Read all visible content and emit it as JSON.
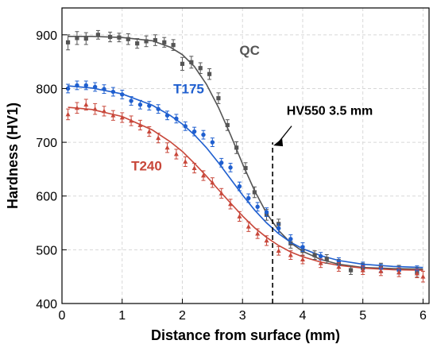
{
  "chart_data": {
    "type": "scatter",
    "xlabel": "Distance from surface (mm)",
    "ylabel": "Hardness (HV1)",
    "xlim": [
      0,
      6.1
    ],
    "ylim": [
      400,
      950
    ],
    "xticks": [
      "0",
      "1",
      "2",
      "3",
      "4",
      "5",
      "6"
    ],
    "yticks": [
      "400",
      "500",
      "600",
      "700",
      "800",
      "900"
    ],
    "grid": true,
    "series": [
      {
        "name": "QC",
        "color": "#555555",
        "marker": "square",
        "x": [
          0.1,
          0.25,
          0.4,
          0.6,
          0.8,
          0.95,
          1.1,
          1.25,
          1.4,
          1.55,
          1.7,
          1.85,
          2.0,
          2.15,
          2.3,
          2.45,
          2.6,
          2.75,
          2.9,
          3.05,
          3.2,
          3.4,
          3.6,
          3.8,
          4.0,
          4.2,
          4.4,
          4.6,
          4.8,
          5.0,
          5.3,
          5.6,
          5.9
        ],
        "y": [
          886,
          894,
          893,
          900,
          896,
          895,
          892,
          884,
          888,
          890,
          886,
          881,
          846,
          849,
          838,
          827,
          782,
          732,
          690,
          652,
          607,
          565,
          548,
          512,
          498,
          490,
          483,
          474,
          462,
          467,
          467,
          463,
          458
        ],
        "error": [
          14,
          12,
          11,
          8,
          9,
          8,
          10,
          9,
          10,
          10,
          9,
          10,
          12,
          11,
          10,
          10,
          10,
          10,
          11,
          10,
          10,
          10,
          9,
          9,
          9,
          8,
          8,
          8,
          8,
          8,
          8,
          8,
          9
        ],
        "fit": {
          "x": [
            0.1,
            0.5,
            1.0,
            1.5,
            1.8,
            2.0,
            2.2,
            2.4,
            2.6,
            2.8,
            3.0,
            3.2,
            3.4,
            3.6,
            3.8,
            4.0,
            4.3,
            4.6,
            5.0,
            5.5,
            6.0
          ],
          "y": [
            897,
            897,
            895,
            889,
            877,
            863,
            841,
            808,
            765,
            714,
            660,
            610,
            568,
            536,
            513,
            497,
            482,
            473,
            467,
            465,
            464
          ]
        }
      },
      {
        "name": "T175",
        "color": "#1f5fcf",
        "marker": "circle",
        "x": [
          0.1,
          0.25,
          0.4,
          0.55,
          0.7,
          0.85,
          1.0,
          1.15,
          1.3,
          1.45,
          1.6,
          1.75,
          1.9,
          2.05,
          2.2,
          2.35,
          2.5,
          2.65,
          2.8,
          2.95,
          3.1,
          3.25,
          3.4,
          3.6,
          3.8,
          4.0,
          4.3,
          4.6,
          5.0,
          5.3,
          5.6,
          5.9
        ],
        "y": [
          800,
          806,
          806,
          803,
          799,
          794,
          789,
          777,
          770,
          768,
          762,
          750,
          744,
          730,
          720,
          714,
          700,
          662,
          653,
          618,
          596,
          580,
          570,
          540,
          520,
          505,
          488,
          478,
          470,
          466,
          462,
          463
        ],
        "error": [
          8,
          8,
          8,
          8,
          8,
          8,
          8,
          8,
          8,
          8,
          8,
          8,
          8,
          8,
          8,
          8,
          8,
          8,
          8,
          8,
          8,
          8,
          8,
          8,
          8,
          8,
          7,
          7,
          7,
          7,
          7,
          7
        ],
        "fit": {
          "x": [
            0.1,
            0.5,
            1.0,
            1.5,
            1.8,
            2.0,
            2.2,
            2.4,
            2.6,
            2.8,
            3.0,
            3.2,
            3.4,
            3.6,
            3.8,
            4.0,
            4.3,
            4.6,
            5.0,
            5.5,
            6.0
          ],
          "y": [
            805,
            801,
            790,
            769,
            750,
            734,
            714,
            690,
            662,
            632,
            602,
            574,
            550,
            530,
            514,
            502,
            489,
            480,
            473,
            469,
            467
          ]
        }
      },
      {
        "name": "T240",
        "color": "#c8473a",
        "marker": "triangle",
        "x": [
          0.1,
          0.25,
          0.4,
          0.55,
          0.7,
          0.85,
          1.0,
          1.15,
          1.3,
          1.45,
          1.6,
          1.75,
          1.9,
          2.05,
          2.2,
          2.35,
          2.5,
          2.65,
          2.8,
          2.95,
          3.1,
          3.25,
          3.4,
          3.6,
          3.8,
          4.0,
          4.3,
          4.6,
          5.0,
          5.3,
          5.6,
          5.9,
          6.0
        ],
        "y": [
          752,
          764,
          770,
          762,
          758,
          750,
          746,
          740,
          732,
          720,
          708,
          690,
          678,
          664,
          652,
          638,
          625,
          605,
          585,
          562,
          543,
          530,
          517,
          498,
          490,
          482,
          475,
          468,
          462,
          460,
          458,
          456,
          450
        ],
        "error": [
          10,
          10,
          10,
          10,
          9,
          9,
          9,
          9,
          9,
          9,
          9,
          9,
          9,
          9,
          9,
          9,
          9,
          9,
          9,
          9,
          9,
          9,
          9,
          8,
          8,
          8,
          8,
          8,
          8,
          8,
          8,
          8,
          10
        ],
        "fit": {
          "x": [
            0.1,
            0.5,
            1.0,
            1.5,
            1.8,
            2.0,
            2.2,
            2.4,
            2.6,
            2.8,
            3.0,
            3.2,
            3.4,
            3.6,
            3.8,
            4.0,
            4.3,
            4.6,
            5.0,
            5.5,
            6.0
          ],
          "y": [
            765,
            761,
            748,
            723,
            701,
            683,
            661,
            637,
            612,
            587,
            563,
            541,
            523,
            508,
            496,
            487,
            477,
            471,
            466,
            463,
            462
          ]
        }
      }
    ],
    "annotation": {
      "text": "HV550 3.5 mm",
      "x": 3.5,
      "line_y": [
        400,
        700
      ],
      "arrow_target": [
        3.5,
        700
      ],
      "text_anchor_data": [
        4.45,
        751
      ]
    },
    "series_labels": [
      {
        "series": "QC",
        "text": "QC",
        "at": [
          2.95,
          863
        ]
      },
      {
        "series": "T175",
        "text": "T175",
        "at": [
          1.85,
          791
        ]
      },
      {
        "series": "T240",
        "text": "T240",
        "at": [
          1.15,
          648
        ]
      }
    ]
  }
}
